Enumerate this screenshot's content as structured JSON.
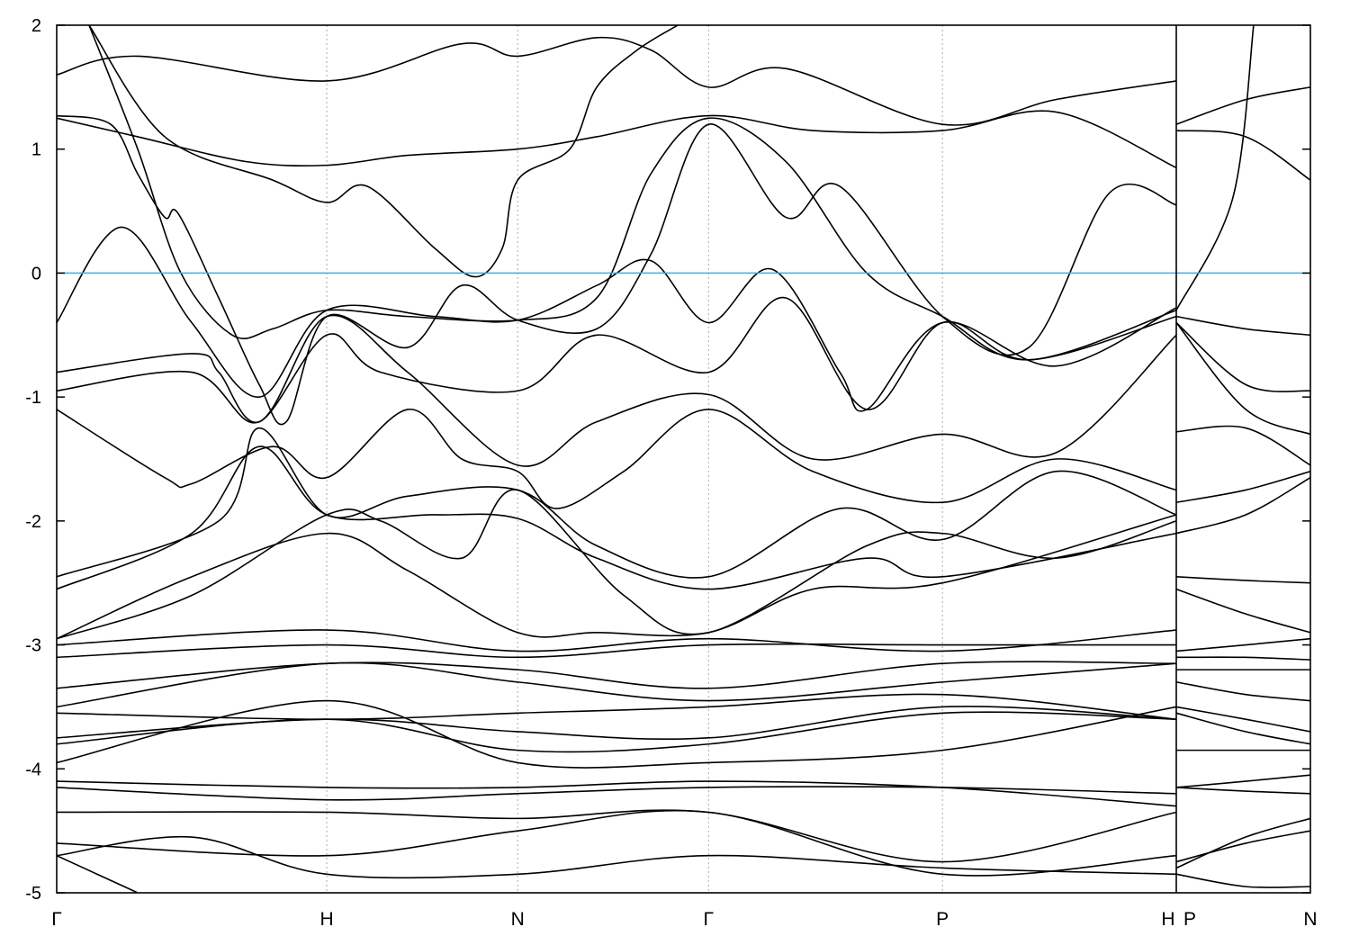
{
  "chart_data": {
    "type": "line",
    "title": "",
    "xlabel": "",
    "ylabel": "",
    "ylim": [
      -5,
      2
    ],
    "yticks": [
      "2",
      "1",
      "0",
      "-1",
      "-2",
      "-3",
      "-4",
      "-5"
    ],
    "ytick_values": [
      2,
      1,
      0,
      -1,
      -2,
      -3,
      -4,
      -5
    ],
    "kpoints": [
      {
        "label": "Γ",
        "k": 0
      },
      {
        "label": "H",
        "k": 1.0
      },
      {
        "label": "N",
        "k": 1.707
      },
      {
        "label": "Γ",
        "k": 2.414
      },
      {
        "label": "P",
        "k": 3.28
      },
      {
        "label": "H",
        "k": 4.146
      },
      {
        "label": "P",
        "k": 4.146
      },
      {
        "label": "N",
        "k": 4.646
      }
    ],
    "xlim": [
      0,
      4.646
    ],
    "path_break_at": 4.146,
    "grid": "vertical dotted at high-symmetry points",
    "fermi_level": 0,
    "colors": {
      "bands": "#000000",
      "fermi": "#4aa8e0",
      "grid": "#aaaaaa"
    },
    "bands_main": [
      [
        [
          0,
          1.6
        ],
        [
          0.3,
          1.75
        ],
        [
          1,
          1.55
        ],
        [
          1.5,
          1.85
        ],
        [
          1.707,
          1.75
        ],
        [
          2.0,
          1.9
        ],
        [
          2.2,
          1.8
        ],
        [
          2.414,
          1.5
        ],
        [
          2.7,
          1.65
        ],
        [
          3.28,
          1.2
        ],
        [
          3.7,
          1.4
        ],
        [
          4.146,
          1.55
        ]
      ],
      [
        [
          0,
          1.25
        ],
        [
          0.3,
          1.1
        ],
        [
          0.7,
          0.9
        ],
        [
          1,
          0.87
        ],
        [
          1.3,
          0.95
        ],
        [
          1.707,
          1.0
        ],
        [
          2.0,
          1.1
        ],
        [
          2.414,
          1.27
        ],
        [
          2.8,
          1.15
        ],
        [
          3.28,
          1.15
        ],
        [
          3.7,
          1.3
        ],
        [
          4.146,
          0.85
        ]
      ],
      [
        [
          0.12,
          2
        ],
        [
          0.4,
          1.1
        ],
        [
          0.8,
          0.75
        ],
        [
          1,
          0.57
        ],
        [
          1.15,
          0.7
        ],
        [
          1.4,
          0.2
        ],
        [
          1.55,
          -0.03
        ],
        [
          1.65,
          0.2
        ],
        [
          1.707,
          0.75
        ],
        [
          1.9,
          1.0
        ],
        [
          2.0,
          1.5
        ],
        [
          2.15,
          1.8
        ],
        [
          2.3,
          2.0
        ]
      ],
      [
        [
          0,
          1.27
        ],
        [
          0.2,
          1.2
        ],
        [
          0.3,
          0.8
        ],
        [
          0.4,
          0.45
        ],
        [
          0.45,
          0.48
        ],
        [
          0.6,
          -0.2
        ],
        [
          0.75,
          -0.9
        ],
        [
          0.85,
          -1.2
        ],
        [
          1,
          -0.35
        ],
        [
          1.3,
          -0.6
        ],
        [
          1.5,
          -0.1
        ],
        [
          1.707,
          -0.38
        ],
        [
          2.0,
          -0.45
        ],
        [
          2.2,
          0.15
        ],
        [
          2.414,
          1.2
        ],
        [
          2.7,
          0.45
        ],
        [
          2.9,
          0.7
        ],
        [
          3.28,
          -0.35
        ],
        [
          3.6,
          -0.6
        ],
        [
          3.9,
          0.65
        ],
        [
          4.146,
          0.55
        ]
      ],
      [
        [
          0.12,
          2
        ],
        [
          0.3,
          1.0
        ],
        [
          0.46,
          0
        ],
        [
          0.65,
          -0.5
        ],
        [
          0.8,
          -0.45
        ],
        [
          1,
          -0.3
        ],
        [
          1.3,
          -0.35
        ],
        [
          1.707,
          -0.38
        ],
        [
          2.0,
          -0.2
        ],
        [
          2.2,
          0.8
        ],
        [
          2.414,
          1.25
        ],
        [
          2.7,
          0.9
        ],
        [
          3.0,
          0.0
        ],
        [
          3.28,
          -0.35
        ],
        [
          3.6,
          -0.7
        ],
        [
          4.146,
          -0.3
        ]
      ],
      [
        [
          0,
          -0.4
        ],
        [
          0.24,
          0.37
        ],
        [
          0.5,
          -0.4
        ],
        [
          0.75,
          -1.0
        ],
        [
          1,
          -0.3
        ],
        [
          1.4,
          -0.35
        ],
        [
          1.707,
          -0.38
        ],
        [
          2.0,
          -0.1
        ],
        [
          2.2,
          0.1
        ],
        [
          2.414,
          -0.4
        ],
        [
          2.65,
          0.03
        ],
        [
          2.9,
          -0.8
        ],
        [
          3.0,
          -1.1
        ],
        [
          3.28,
          -0.4
        ],
        [
          3.7,
          -0.75
        ],
        [
          4.146,
          -0.28
        ]
      ],
      [
        [
          0,
          -0.8
        ],
        [
          0.5,
          -0.65
        ],
        [
          0.6,
          -0.8
        ],
        [
          0.75,
          -1.2
        ],
        [
          1,
          -0.5
        ],
        [
          1.2,
          -0.8
        ],
        [
          1.707,
          -0.95
        ],
        [
          2.0,
          -0.5
        ],
        [
          2.414,
          -0.8
        ],
        [
          2.7,
          -0.2
        ],
        [
          3.0,
          -1.1
        ],
        [
          3.28,
          -0.4
        ],
        [
          3.6,
          -0.7
        ],
        [
          4.146,
          -0.35
        ]
      ],
      [
        [
          0,
          -0.95
        ],
        [
          0.5,
          -0.8
        ],
        [
          0.75,
          -1.2
        ],
        [
          1,
          -0.35
        ],
        [
          1.3,
          -0.8
        ],
        [
          1.707,
          -1.55
        ],
        [
          2.0,
          -1.2
        ],
        [
          2.414,
          -0.98
        ],
        [
          2.8,
          -1.5
        ],
        [
          3.28,
          -1.3
        ],
        [
          3.7,
          -1.45
        ],
        [
          4.146,
          -0.5
        ]
      ],
      [
        [
          0,
          -1.1
        ],
        [
          0.4,
          -1.65
        ],
        [
          0.5,
          -1.7
        ],
        [
          0.8,
          -1.4
        ],
        [
          1,
          -1.65
        ],
        [
          1.3,
          -1.1
        ],
        [
          1.5,
          -1.5
        ],
        [
          1.707,
          -1.6
        ],
        [
          1.85,
          -1.9
        ],
        [
          2.1,
          -1.6
        ],
        [
          2.414,
          -1.1
        ],
        [
          2.8,
          -1.6
        ],
        [
          3.28,
          -1.85
        ],
        [
          3.7,
          -1.5
        ],
        [
          4.146,
          -1.75
        ]
      ],
      [
        [
          0,
          -2.45
        ],
        [
          0.6,
          -2.0
        ],
        [
          0.75,
          -1.25
        ],
        [
          1,
          -1.95
        ],
        [
          1.3,
          -1.8
        ],
        [
          1.707,
          -1.75
        ],
        [
          2.0,
          -2.2
        ],
        [
          2.414,
          -2.45
        ],
        [
          2.9,
          -1.9
        ],
        [
          3.28,
          -2.15
        ],
        [
          3.7,
          -1.6
        ],
        [
          4.146,
          -1.95
        ]
      ],
      [
        [
          0,
          -2.55
        ],
        [
          0.5,
          -2.1
        ],
        [
          0.75,
          -1.4
        ],
        [
          1,
          -1.95
        ],
        [
          1.4,
          -1.95
        ],
        [
          1.707,
          -1.98
        ],
        [
          2.0,
          -2.3
        ],
        [
          2.414,
          -2.55
        ],
        [
          3.0,
          -2.3
        ],
        [
          3.28,
          -2.45
        ],
        [
          4.146,
          -2.1
        ]
      ],
      [
        [
          0,
          -2.95
        ],
        [
          0.5,
          -2.45
        ],
        [
          1,
          -2.1
        ],
        [
          1.3,
          -2.4
        ],
        [
          1.707,
          -2.9
        ],
        [
          2.0,
          -2.9
        ],
        [
          2.414,
          -2.9
        ],
        [
          2.8,
          -2.55
        ],
        [
          3.28,
          -2.5
        ],
        [
          4.146,
          -1.95
        ]
      ],
      [
        [
          0,
          -2.95
        ],
        [
          0.5,
          -2.6
        ],
        [
          1,
          -1.95
        ],
        [
          1.2,
          -2.0
        ],
        [
          1.5,
          -2.3
        ],
        [
          1.707,
          -1.75
        ],
        [
          2.1,
          -2.6
        ],
        [
          2.414,
          -2.9
        ],
        [
          3.0,
          -2.2
        ],
        [
          3.28,
          -2.1
        ],
        [
          3.7,
          -2.3
        ],
        [
          4.146,
          -2.0
        ]
      ],
      [
        [
          0,
          -3.0
        ],
        [
          1,
          -2.88
        ],
        [
          1.707,
          -3.05
        ],
        [
          2.414,
          -2.95
        ],
        [
          3.28,
          -3.05
        ],
        [
          4.146,
          -2.88
        ]
      ],
      [
        [
          0,
          -3.1
        ],
        [
          1,
          -3.0
        ],
        [
          1.707,
          -3.1
        ],
        [
          2.414,
          -3.0
        ],
        [
          3.28,
          -3.0
        ],
        [
          4.146,
          -3.0
        ]
      ],
      [
        [
          0,
          -3.35
        ],
        [
          1,
          -3.15
        ],
        [
          1.707,
          -3.2
        ],
        [
          2.414,
          -3.35
        ],
        [
          3.28,
          -3.15
        ],
        [
          4.146,
          -3.15
        ]
      ],
      [
        [
          0,
          -3.5
        ],
        [
          1,
          -3.15
        ],
        [
          1.707,
          -3.3
        ],
        [
          2.414,
          -3.45
        ],
        [
          3.28,
          -3.3
        ],
        [
          4.146,
          -3.15
        ]
      ],
      [
        [
          0,
          -3.55
        ],
        [
          1,
          -3.6
        ],
        [
          1.707,
          -3.55
        ],
        [
          2.414,
          -3.5
        ],
        [
          3.28,
          -3.4
        ],
        [
          4.146,
          -3.6
        ]
      ],
      [
        [
          0,
          -3.75
        ],
        [
          1,
          -3.6
        ],
        [
          1.707,
          -3.7
        ],
        [
          2.414,
          -3.75
        ],
        [
          3.28,
          -3.5
        ],
        [
          4.146,
          -3.6
        ]
      ],
      [
        [
          0,
          -3.8
        ],
        [
          1,
          -3.6
        ],
        [
          1.707,
          -3.85
        ],
        [
          2.414,
          -3.8
        ],
        [
          3.28,
          -3.55
        ],
        [
          4.146,
          -3.6
        ]
      ],
      [
        [
          0,
          -3.95
        ],
        [
          1,
          -3.45
        ],
        [
          1.707,
          -3.95
        ],
        [
          2.414,
          -3.95
        ],
        [
          3.28,
          -3.85
        ],
        [
          4.146,
          -3.5
        ]
      ],
      [
        [
          0,
          -4.1
        ],
        [
          1,
          -4.15
        ],
        [
          1.707,
          -4.15
        ],
        [
          2.414,
          -4.1
        ],
        [
          3.28,
          -4.15
        ],
        [
          4.146,
          -4.3
        ]
      ],
      [
        [
          0,
          -4.15
        ],
        [
          1,
          -4.25
        ],
        [
          1.707,
          -4.2
        ],
        [
          2.414,
          -4.15
        ],
        [
          3.28,
          -4.15
        ],
        [
          4.146,
          -4.2
        ]
      ],
      [
        [
          0,
          -4.35
        ],
        [
          1,
          -4.35
        ],
        [
          1.707,
          -4.4
        ],
        [
          2.414,
          -4.35
        ],
        [
          3.28,
          -4.75
        ],
        [
          4.146,
          -4.35
        ]
      ],
      [
        [
          0,
          -4.6
        ],
        [
          1,
          -4.7
        ],
        [
          1.707,
          -4.5
        ],
        [
          2.414,
          -4.35
        ],
        [
          3.28,
          -4.85
        ],
        [
          4.146,
          -4.7
        ]
      ],
      [
        [
          0,
          -4.7
        ],
        [
          0.5,
          -4.55
        ],
        [
          1,
          -4.85
        ],
        [
          1.707,
          -4.85
        ],
        [
          2.414,
          -4.7
        ],
        [
          3.28,
          -4.8
        ],
        [
          4.146,
          -4.85
        ]
      ],
      [
        [
          0,
          -4.7
        ],
        [
          0.15,
          -4.85
        ],
        [
          0.3,
          -5.0
        ]
      ]
    ],
    "bands_PN": [
      [
        [
          4.146,
          1.2
        ],
        [
          4.4,
          1.4
        ],
        [
          4.646,
          1.5
        ]
      ],
      [
        [
          4.146,
          1.15
        ],
        [
          4.4,
          1.1
        ],
        [
          4.646,
          0.75
        ]
      ],
      [
        [
          4.146,
          -0.3
        ],
        [
          4.35,
          0.6
        ],
        [
          4.43,
          2.0
        ]
      ],
      [
        [
          4.146,
          -0.35
        ],
        [
          4.4,
          -0.45
        ],
        [
          4.646,
          -0.5
        ]
      ],
      [
        [
          4.146,
          -0.4
        ],
        [
          4.4,
          -0.9
        ],
        [
          4.646,
          -0.95
        ]
      ],
      [
        [
          4.146,
          -0.4
        ],
        [
          4.4,
          -1.1
        ],
        [
          4.646,
          -1.3
        ]
      ],
      [
        [
          4.146,
          -1.28
        ],
        [
          4.4,
          -1.25
        ],
        [
          4.646,
          -1.55
        ]
      ],
      [
        [
          4.146,
          -1.85
        ],
        [
          4.4,
          -1.75
        ],
        [
          4.646,
          -1.6
        ]
      ],
      [
        [
          4.146,
          -2.1
        ],
        [
          4.4,
          -1.95
        ],
        [
          4.646,
          -1.65
        ]
      ],
      [
        [
          4.146,
          -2.45
        ],
        [
          4.4,
          -2.48
        ],
        [
          4.646,
          -2.5
        ]
      ],
      [
        [
          4.146,
          -2.55
        ],
        [
          4.4,
          -2.75
        ],
        [
          4.646,
          -2.9
        ]
      ],
      [
        [
          4.146,
          -3.05
        ],
        [
          4.4,
          -3.0
        ],
        [
          4.646,
          -2.95
        ]
      ],
      [
        [
          4.146,
          -3.1
        ],
        [
          4.4,
          -3.1
        ],
        [
          4.646,
          -3.12
        ]
      ],
      [
        [
          4.146,
          -3.2
        ],
        [
          4.4,
          -3.2
        ],
        [
          4.646,
          -3.2
        ]
      ],
      [
        [
          4.146,
          -3.3
        ],
        [
          4.4,
          -3.4
        ],
        [
          4.646,
          -3.45
        ]
      ],
      [
        [
          4.146,
          -3.5
        ],
        [
          4.4,
          -3.6
        ],
        [
          4.646,
          -3.7
        ]
      ],
      [
        [
          4.146,
          -3.55
        ],
        [
          4.4,
          -3.7
        ],
        [
          4.646,
          -3.8
        ]
      ],
      [
        [
          4.146,
          -3.85
        ],
        [
          4.4,
          -3.85
        ],
        [
          4.646,
          -3.85
        ]
      ],
      [
        [
          4.146,
          -4.15
        ],
        [
          4.4,
          -4.18
        ],
        [
          4.646,
          -4.2
        ]
      ],
      [
        [
          4.146,
          -4.15
        ],
        [
          4.4,
          -4.1
        ],
        [
          4.646,
          -4.05
        ]
      ],
      [
        [
          4.146,
          -4.8
        ],
        [
          4.4,
          -4.55
        ],
        [
          4.646,
          -4.4
        ]
      ],
      [
        [
          4.146,
          -4.75
        ],
        [
          4.4,
          -4.6
        ],
        [
          4.646,
          -4.5
        ]
      ],
      [
        [
          4.146,
          -4.85
        ],
        [
          4.4,
          -4.95
        ],
        [
          4.646,
          -4.95
        ]
      ]
    ]
  }
}
